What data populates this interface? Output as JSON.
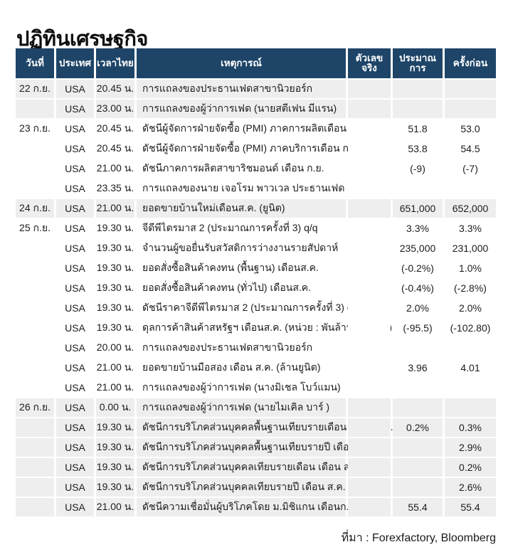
{
  "page": {
    "title": "ปฏิทินเศรษฐกิจ",
    "source": "ที่มา : Forexfactory, Bloomberg"
  },
  "colors": {
    "header_bg": "#1e4568",
    "row_shaded": "#eeeeee",
    "row_plain": "#ffffff"
  },
  "table": {
    "columns": [
      "วันที่",
      "ประเทศ",
      "เวลาไทย",
      "เหตุการณ์",
      "ตัวเลขจริง",
      "ประมาณการ",
      "ครั้งก่อน"
    ],
    "rows": [
      {
        "date": "22 ก.ย.",
        "country": "USA",
        "time": "20.45 น.",
        "event": "การแถลงของประธานเฟดสาขานิวยอร์ก",
        "actual": "",
        "estimate": "",
        "previous": ""
      },
      {
        "date": "",
        "country": "USA",
        "time": "23.00 น.",
        "event": "การแถลงของผู้ว่าการเฟด (นายสตีเฟน มีแรน)",
        "actual": "",
        "estimate": "",
        "previous": ""
      },
      {
        "date": "23 ก.ย.",
        "country": "USA",
        "time": "20.45 น.",
        "event": "ดัชนีผู้จัดการฝ่ายจัดซื้อ (PMI) ภาคการผลิตเดือน ก.ย.",
        "actual": "",
        "estimate": "51.8",
        "previous": "53.0"
      },
      {
        "date": "",
        "country": "USA",
        "time": "20.45 น.",
        "event": "ดัชนีผู้จัดการฝ่ายจัดซื้อ (PMI) ภาคบริการเดือน ก.ย.",
        "actual": "",
        "estimate": "53.8",
        "previous": "54.5"
      },
      {
        "date": "",
        "country": "USA",
        "time": "21.00 น.",
        "event": "ดัชนีภาคการผลิตสาขาริชมอนด์ เดือน ก.ย.",
        "actual": "",
        "estimate": "(-9)",
        "previous": "(-7)"
      },
      {
        "date": "",
        "country": "USA",
        "time": "23.35 น.",
        "event": "การแถลงของนาย เจอโรม พาวเวล ประธานเฟด",
        "actual": "",
        "estimate": "",
        "previous": ""
      },
      {
        "date": "24 ก.ย.",
        "country": "USA",
        "time": "21.00 น.",
        "event": "ยอดขายบ้านใหม่เดือนส.ค. (ยูนิต)",
        "actual": "",
        "estimate": "651,000",
        "previous": "652,000"
      },
      {
        "date": "25 ก.ย.",
        "country": "USA",
        "time": "19.30 น.",
        "event": "จีดีพีไตรมาส 2 (ประมาณการครั้งที่ 3) q/q",
        "actual": "",
        "estimate": "3.3%",
        "previous": "3.3%"
      },
      {
        "date": "",
        "country": "USA",
        "time": "19.30 น.",
        "event": "จำนวนผู้ขอยื่นรับสวัสดิการว่างงานรายสัปดาห์",
        "actual": "",
        "estimate": "235,000",
        "previous": "231,000"
      },
      {
        "date": "",
        "country": "USA",
        "time": "19.30 น.",
        "event": "ยอดสั่งซื้อสินค้าคงทน (พื้นฐาน) เดือนส.ค.",
        "actual": "",
        "estimate": "(-0.2%)",
        "previous": "1.0%"
      },
      {
        "date": "",
        "country": "USA",
        "time": "19.30 น.",
        "event": "ยอดสั่งซื้อสินค้าคงทน (ทั่วไป) เดือนส.ค.",
        "actual": "",
        "estimate": "(-0.4%)",
        "previous": "(-2.8%)"
      },
      {
        "date": "",
        "country": "USA",
        "time": "19.30 น.",
        "event": "ดัชนีราคาจีดีพีไตรมาส 2 (ประมาณการครั้งที่ 3) q/q",
        "actual": "",
        "estimate": "2.0%",
        "previous": "2.0%"
      },
      {
        "date": "",
        "country": "USA",
        "time": "19.30 น.",
        "event": "ดุลการค้าสินค้าสหรัฐฯ เดือนส.ค. (หน่วย : พันล้านดอลลาร์)",
        "actual": "",
        "estimate": "(-95.5)",
        "previous": "(-102.80)"
      },
      {
        "date": "",
        "country": "USA",
        "time": "20.00 น.",
        "event": "การแถลงของประธานเฟดสาขานิวยอร์ก",
        "actual": "",
        "estimate": "",
        "previous": ""
      },
      {
        "date": "",
        "country": "USA",
        "time": "21.00 น.",
        "event": "ยอดขายบ้านมือสอง เดือน ส.ค. (ล้านยูนิต)",
        "actual": "",
        "estimate": "3.96",
        "previous": "4.01"
      },
      {
        "date": "",
        "country": "USA",
        "time": "21.00 น.",
        "event": "การแถลงของผู้ว่าการเฟด (นางมิเชล โบว์แมน)",
        "actual": "",
        "estimate": "",
        "previous": ""
      },
      {
        "date": "26 ก.ย.",
        "country": "USA",
        "time": "0.00 น.",
        "event": "การแถลงของผู้ว่าการเฟด (นายไมเคิล บาร์ )",
        "actual": "",
        "estimate": "",
        "previous": ""
      },
      {
        "date": "",
        "country": "USA",
        "time": "19.30 น.",
        "event": "ดัชนีการบริโภคส่วนบุคคลพื้นฐานเทียบรายเดือน เดือน ส.ค.",
        "actual": "",
        "estimate": "0.2%",
        "previous": "0.3%"
      },
      {
        "date": "",
        "country": "USA",
        "time": "19.30 น.",
        "event": "ดัชนีการบริโภคส่วนบุคคลพื้นฐานเทียบรายปี เดือน ส.ค.",
        "actual": "",
        "estimate": "",
        "previous": "2.9%"
      },
      {
        "date": "",
        "country": "USA",
        "time": "19.30 น.",
        "event": "ดัชนีการบริโภคส่วนบุคคลเทียบรายเดือน เดือน ส.ค.",
        "actual": "",
        "estimate": "",
        "previous": "0.2%"
      },
      {
        "date": "",
        "country": "USA",
        "time": "19.30 น.",
        "event": "ดัชนีการบริโภคส่วนบุคคลเทียบรายปี เดือน ส.ค.",
        "actual": "",
        "estimate": "",
        "previous": "2.6%"
      },
      {
        "date": "",
        "country": "USA",
        "time": "21.00 น.",
        "event": "ดัชนีความเชื่อมั่นผู้บริโภคโดย ม.มิชิแกน เดือนก.ย.",
        "actual": "",
        "estimate": "55.4",
        "previous": "55.4"
      }
    ]
  }
}
